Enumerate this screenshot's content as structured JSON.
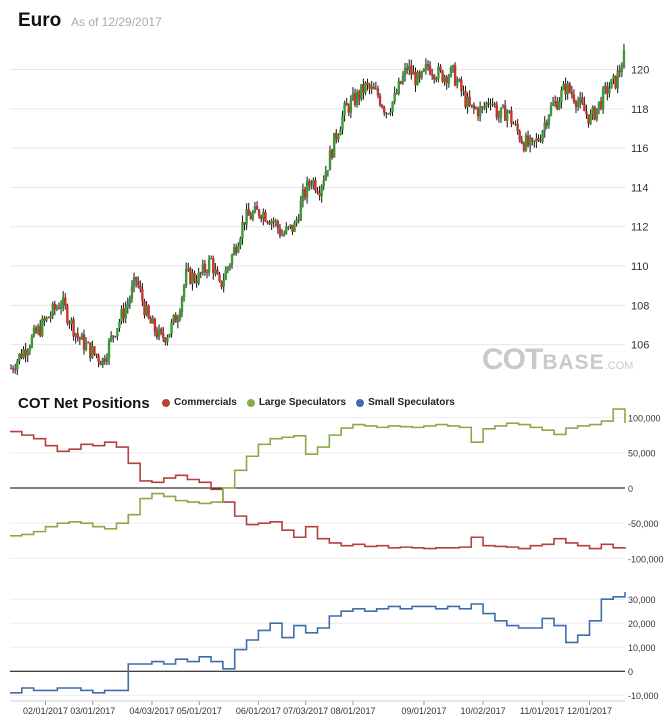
{
  "header": {
    "title": "Euro",
    "as_of": "As of 12/29/2017"
  },
  "watermark": {
    "part1": "COT",
    "part2": "BASE",
    "part3": ".COM"
  },
  "cot": {
    "title": "COT Net Positions",
    "legend": [
      {
        "name": "Commercials",
        "color": "#b5403c"
      },
      {
        "name": "Large Speculators",
        "color": "#8aaa4a"
      },
      {
        "name": "Small Speculators",
        "color": "#3d6fa8"
      }
    ]
  },
  "chart_data": [
    {
      "type": "candlestick",
      "title": "Euro",
      "ylim": [
        104.2,
        121.4
      ],
      "y_ticks": [
        106,
        108,
        110,
        112,
        114,
        116,
        118,
        120
      ],
      "y_tick_labels": [
        "106",
        "108",
        "110",
        "112",
        "114",
        "116",
        "118",
        "120"
      ],
      "up_color": "#3a9a35",
      "down_color": "#c9322e",
      "approx_close_path": [
        [
          0,
          104.8
        ],
        [
          4,
          106.0
        ],
        [
          9,
          107.4
        ],
        [
          12,
          108.2
        ],
        [
          16,
          106.4
        ],
        [
          19,
          105.7
        ],
        [
          22,
          105.2
        ],
        [
          25,
          106.8
        ],
        [
          28,
          108.1
        ],
        [
          30,
          109.3
        ],
        [
          33,
          107.2
        ],
        [
          36,
          106.3
        ],
        [
          38,
          106.7
        ],
        [
          40,
          107.6
        ],
        [
          42,
          109.5
        ],
        [
          45,
          109.4
        ],
        [
          48,
          110.3
        ],
        [
          50,
          108.9
        ],
        [
          53,
          110.5
        ],
        [
          56,
          112.4
        ],
        [
          58,
          112.6
        ],
        [
          60,
          112.8
        ],
        [
          63,
          112.3
        ],
        [
          65,
          111.6
        ],
        [
          68,
          112.0
        ],
        [
          70,
          113.5
        ],
        [
          72,
          114.4
        ],
        [
          74,
          114.0
        ],
        [
          76,
          115.2
        ],
        [
          78,
          116.7
        ],
        [
          80,
          117.9
        ],
        [
          83,
          118.6
        ],
        [
          85,
          119.1
        ],
        [
          88,
          118.7
        ],
        [
          90,
          117.9
        ],
        [
          92,
          118.5
        ],
        [
          95,
          120.1
        ],
        [
          98,
          119.3
        ],
        [
          100,
          120.2
        ],
        [
          103,
          119.7
        ],
        [
          106,
          119.8
        ],
        [
          108,
          118.9
        ],
        [
          110,
          118.0
        ],
        [
          113,
          117.9
        ],
        [
          115,
          118.6
        ],
        [
          117,
          117.6
        ],
        [
          119,
          117.9
        ],
        [
          121,
          117.0
        ],
        [
          123,
          116.3
        ],
        [
          125,
          116.0
        ],
        [
          127,
          116.7
        ],
        [
          129,
          117.9
        ],
        [
          131,
          118.4
        ],
        [
          133,
          119.1
        ],
        [
          135,
          118.7
        ],
        [
          137,
          118.0
        ],
        [
          139,
          117.5
        ],
        [
          141,
          118.2
        ],
        [
          143,
          119.0
        ],
        [
          145,
          119.4
        ],
        [
          147,
          120.6
        ]
      ]
    },
    {
      "type": "line",
      "title": "COT Net Positions",
      "ylim": [
        -125000,
        105000
      ],
      "y_ticks": [
        -100000,
        -50000,
        0,
        50000,
        100000
      ],
      "y_tick_labels": [
        "-100,000",
        "-50,000",
        "0",
        "50,000",
        "100,000"
      ],
      "x_index_range": [
        0,
        52
      ],
      "series": [
        {
          "name": "Commercials",
          "color": "#b5403c",
          "values": [
            80000,
            75000,
            70000,
            60000,
            52000,
            55000,
            62000,
            60000,
            65000,
            58000,
            35000,
            10000,
            8000,
            14000,
            18000,
            12000,
            8000,
            -2000,
            -20000,
            -40000,
            -52000,
            -50000,
            -48000,
            -60000,
            -70000,
            -55000,
            -72000,
            -78000,
            -82000,
            -80000,
            -83000,
            -82000,
            -85000,
            -84000,
            -85000,
            -86000,
            -85000,
            -85000,
            -84000,
            -70000,
            -82000,
            -83000,
            -84000,
            -86000,
            -82000,
            -80000,
            -72000,
            -78000,
            -82000,
            -86000,
            -80000,
            -85000,
            -84000
          ]
        },
        {
          "name": "Large Speculators",
          "color": "#8aaa4a",
          "values": [
            -68000,
            -66000,
            -62000,
            -55000,
            -50000,
            -48000,
            -50000,
            -55000,
            -58000,
            -50000,
            -38000,
            -15000,
            -8000,
            -12000,
            -18000,
            -20000,
            -22000,
            -20000,
            0,
            25000,
            45000,
            62000,
            70000,
            72000,
            74000,
            48000,
            58000,
            75000,
            85000,
            90000,
            88000,
            86000,
            88000,
            87000,
            86000,
            88000,
            90000,
            88000,
            86000,
            65000,
            84000,
            88000,
            92000,
            90000,
            86000,
            82000,
            76000,
            85000,
            88000,
            90000,
            95000,
            112000,
            92000
          ]
        }
      ]
    },
    {
      "type": "line",
      "title": "Small Speculators",
      "ylim": [
        -12000,
        38000
      ],
      "y_ticks": [
        -10000,
        0,
        10000,
        20000,
        30000
      ],
      "y_tick_labels": [
        "-10,000",
        "0",
        "10,000",
        "20,000",
        "30,000"
      ],
      "x_tick_labels": [
        "02/01/2017",
        "03/01/2017",
        "04/03/2017",
        "05/01/2017",
        "06/01/2017",
        "07/03/2017",
        "08/01/2017",
        "09/01/2017",
        "10/02/2017",
        "11/01/2017",
        "12/01/2017"
      ],
      "x_tick_index": [
        3,
        7,
        12,
        16,
        21,
        25,
        29,
        35,
        40,
        45,
        49
      ],
      "series": [
        {
          "name": "Small Speculators",
          "color": "#3d6fa8",
          "values": [
            -9000,
            -7000,
            -8000,
            -8000,
            -7000,
            -7000,
            -8000,
            -9000,
            -8000,
            -8000,
            3000,
            3000,
            4000,
            3000,
            5000,
            4000,
            6000,
            4000,
            1000,
            9000,
            13000,
            17000,
            20000,
            14000,
            19000,
            16000,
            18000,
            23000,
            25000,
            26000,
            25000,
            26000,
            27000,
            26000,
            27000,
            27000,
            26000,
            27000,
            26000,
            28000,
            24000,
            21000,
            19000,
            18000,
            18000,
            22000,
            19000,
            12000,
            15000,
            21000,
            30000,
            31000,
            33000
          ]
        }
      ]
    }
  ]
}
